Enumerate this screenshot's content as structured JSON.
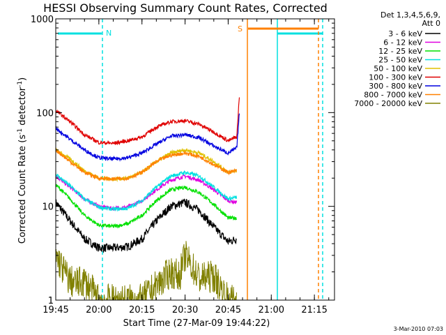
{
  "chart_data": {
    "type": "line",
    "title": "HESSI Observing Summary Count Rates, Corrected",
    "xlabel": "Start Time (27-Mar-09 19:44:22)",
    "ylabel": "Corrected Count Rate (s⁻¹ detector⁻¹)",
    "ylabel_main": "Corrected Count Rate (s",
    "ylabel_sup1": "-1",
    "ylabel_mid": " detector",
    "ylabel_sup2": "-1",
    "ylabel_end": ")",
    "y_scale": "log",
    "ylim": [
      1,
      1000
    ],
    "y_ticks": [
      {
        "value": 1,
        "label": "1"
      },
      {
        "value": 10,
        "label": "10"
      },
      {
        "value": 100,
        "label": "100"
      },
      {
        "value": 1000,
        "label": "1000"
      }
    ],
    "xlim": [
      "19:45",
      "21:22"
    ],
    "x_ticks": [
      "19:45",
      "20:00",
      "20:15",
      "20:30",
      "20:45",
      "21:00",
      "21:15"
    ],
    "legend": {
      "placement": "right",
      "header": [
        "Det 1,3,4,5,6,9,",
        "Att 0"
      ]
    },
    "series": [
      {
        "name": "3 - 6 keV",
        "color": "#000000",
        "x": [
          "19:45",
          "19:50",
          "19:55",
          "20:00",
          "20:05",
          "20:10",
          "20:15",
          "20:20",
          "20:25",
          "20:30",
          "20:35",
          "20:40",
          "20:45",
          "20:48"
        ],
        "values": [
          11,
          7,
          4.5,
          3.6,
          3.6,
          3.7,
          4.5,
          7,
          10,
          11,
          9,
          6,
          4.2,
          4.5
        ]
      },
      {
        "name": "6 - 12 keV",
        "color": "#e000e0",
        "x": [
          "19:45",
          "19:50",
          "19:55",
          "20:00",
          "20:05",
          "20:10",
          "20:15",
          "20:20",
          "20:25",
          "20:30",
          "20:35",
          "20:40",
          "20:45",
          "20:48"
        ],
        "values": [
          21,
          16,
          12,
          10,
          9.5,
          9.8,
          11.5,
          15,
          19,
          21,
          19,
          15,
          11.5,
          11
        ]
      },
      {
        "name": "12 - 25 keV",
        "color": "#00e000",
        "x": [
          "19:45",
          "19:50",
          "19:55",
          "20:00",
          "20:05",
          "20:10",
          "20:15",
          "20:20",
          "20:25",
          "20:30",
          "20:35",
          "20:40",
          "20:45",
          "20:48"
        ],
        "values": [
          17,
          12,
          8,
          6.3,
          6.1,
          6.5,
          8,
          11.5,
          15,
          16,
          14,
          10.5,
          7.5,
          7.5
        ]
      },
      {
        "name": "25 - 50 keV",
        "color": "#00e0e0",
        "x": [
          "19:45",
          "19:50",
          "19:55",
          "20:00",
          "20:05",
          "20:10",
          "20:15",
          "20:20",
          "20:25",
          "20:30",
          "20:35",
          "20:40",
          "20:45",
          "20:48"
        ],
        "values": [
          22,
          16.5,
          12,
          9.8,
          9.3,
          9.5,
          11.5,
          16,
          21,
          23,
          21,
          16,
          12,
          12.5
        ]
      },
      {
        "name": "50 - 100 keV",
        "color": "#e0c000",
        "x": [
          "19:45",
          "19:50",
          "19:55",
          "20:00",
          "20:05",
          "20:10",
          "20:15",
          "20:20",
          "20:25",
          "20:30",
          "20:35",
          "20:40",
          "20:45",
          "20:48"
        ],
        "values": [
          40,
          32,
          24,
          20,
          19.5,
          20,
          23,
          30,
          37,
          40,
          37,
          30,
          23,
          24
        ]
      },
      {
        "name": "100 - 300 keV",
        "color": "#e00000",
        "x": [
          "19:45",
          "19:50",
          "19:55",
          "20:00",
          "20:05",
          "20:10",
          "20:15",
          "20:20",
          "20:25",
          "20:30",
          "20:35",
          "20:40",
          "20:45",
          "20:48",
          "20:49"
        ],
        "values": [
          105,
          80,
          58,
          48,
          47,
          50,
          55,
          70,
          80,
          82,
          75,
          62,
          50,
          55,
          170
        ]
      },
      {
        "name": "300 - 800 keV",
        "color": "#0000e0",
        "x": [
          "19:45",
          "19:50",
          "19:55",
          "20:00",
          "20:05",
          "20:10",
          "20:15",
          "20:20",
          "20:25",
          "20:30",
          "20:35",
          "20:40",
          "20:45",
          "20:48",
          "20:49"
        ],
        "values": [
          68,
          52,
          40,
          33,
          32,
          33,
          37,
          46,
          56,
          58,
          54,
          44,
          37,
          42,
          110
        ]
      },
      {
        "name": "800 - 7000 keV",
        "color": "#ff8000",
        "x": [
          "19:45",
          "19:50",
          "19:55",
          "20:00",
          "20:05",
          "20:10",
          "20:15",
          "20:20",
          "20:25",
          "20:30",
          "20:35",
          "20:40",
          "20:45",
          "20:48"
        ],
        "values": [
          40,
          30,
          23,
          20,
          19.5,
          20,
          23,
          30,
          35,
          37,
          34,
          28,
          23,
          24
        ]
      },
      {
        "name": "7000 - 20000 keV",
        "color": "#808000",
        "x": [
          "19:45",
          "19:48",
          "19:50",
          "19:52",
          "19:55",
          "20:00",
          "20:15",
          "20:25",
          "20:28",
          "20:30",
          "20:35",
          "20:40",
          "20:45",
          "20:48"
        ],
        "values": [
          3,
          2,
          1.6,
          1.5,
          1.6,
          1.0,
          1.0,
          2,
          1.8,
          3,
          1.7,
          1.8,
          1.0,
          1.0
        ]
      }
    ],
    "markers": [
      {
        "label": "N",
        "color": "#00e0e0"
      },
      {
        "label": "S",
        "color": "#ff8000"
      }
    ],
    "footer": "3-Mar-2010 07:03"
  }
}
